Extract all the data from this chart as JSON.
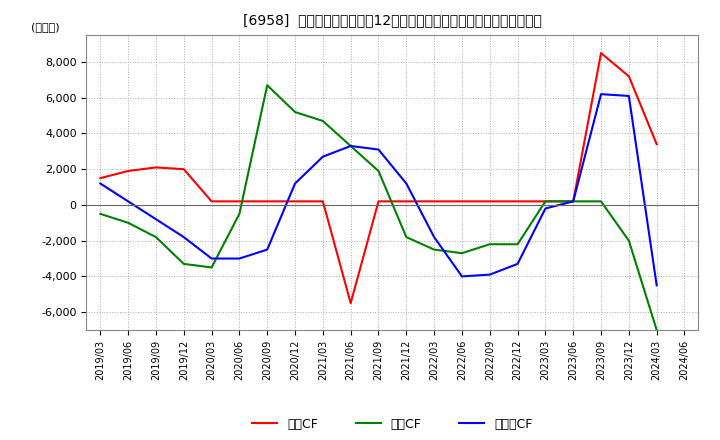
{
  "title": "[6958]  キャッシュフローの12か月移動合計の対前年同期増減額の推移",
  "ylabel": "(百万円)",
  "ylim": [
    -7000,
    9500
  ],
  "yticks": [
    -6000,
    -4000,
    -2000,
    0,
    2000,
    4000,
    6000,
    8000
  ],
  "dates": [
    "2019/03",
    "2019/06",
    "2019/09",
    "2019/12",
    "2020/03",
    "2020/06",
    "2020/09",
    "2020/12",
    "2021/03",
    "2021/06",
    "2021/09",
    "2021/12",
    "2022/03",
    "2022/06",
    "2022/09",
    "2022/12",
    "2023/03",
    "2023/06",
    "2023/09",
    "2023/12",
    "2024/03",
    "2024/06"
  ],
  "operating_cf": [
    1500,
    1900,
    2100,
    2000,
    200,
    200,
    200,
    200,
    200,
    -5500,
    200,
    200,
    200,
    200,
    200,
    200,
    200,
    200,
    8500,
    7200,
    3400,
    null
  ],
  "investing_cf": [
    -500,
    -1000,
    -1800,
    -3300,
    -3500,
    -500,
    6700,
    5200,
    4700,
    3300,
    1900,
    -1800,
    -2500,
    -2700,
    -2200,
    -2200,
    200,
    200,
    200,
    -2000,
    -7000,
    null
  ],
  "free_cf": [
    1200,
    200,
    -800,
    -1800,
    -3000,
    -3000,
    -2500,
    1200,
    2700,
    3300,
    3100,
    1200,
    -1800,
    -4000,
    -3900,
    -3300,
    -200,
    200,
    6200,
    6100,
    -4500,
    null
  ],
  "operating_color": "#ff0000",
  "investing_color": "#008000",
  "free_cf_color": "#0000ff",
  "bg_color": "#ffffff",
  "plot_bg_color": "#ffffff",
  "grid_color": "#aaaaaa",
  "legend_labels": [
    "営業CF",
    "投資CF",
    "フリーCF"
  ]
}
